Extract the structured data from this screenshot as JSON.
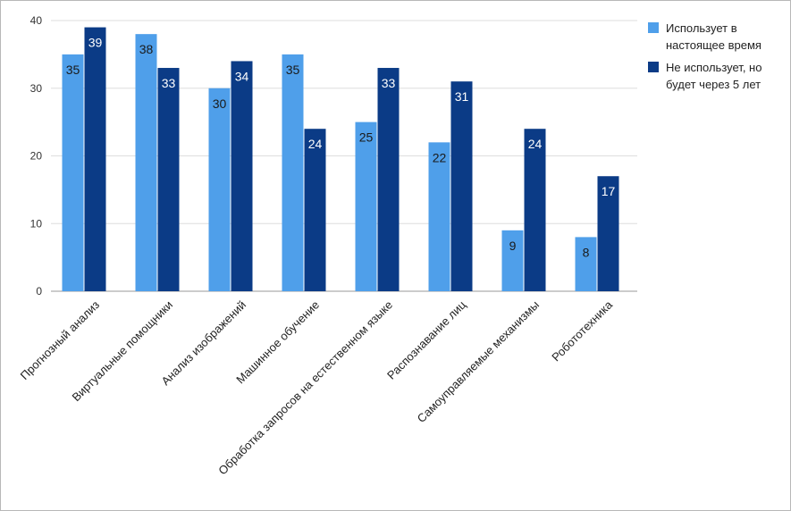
{
  "chart_data": {
    "type": "bar",
    "title": "",
    "xlabel": "",
    "ylabel": "",
    "ylim": [
      0,
      40
    ],
    "yticks": [
      0,
      10,
      20,
      30,
      40
    ],
    "grid": true,
    "legend_position": "top-right",
    "categories": [
      "Прогнозный анализ",
      "Виртуальные помощники",
      "Анализ изображений",
      "Машинное обучение",
      "Обработка запросов на естественном языке",
      "Распознавание лиц",
      "Самоуправляемые механизмы",
      "Робототехника"
    ],
    "series": [
      {
        "name": "Использует в настоящее время",
        "legend_lines": [
          "Использует в",
          "настоящее время"
        ],
        "color": "#4f9fea",
        "values": [
          35,
          38,
          30,
          35,
          25,
          22,
          9,
          8
        ]
      },
      {
        "name": "Не использует, но будет через 5 лет",
        "legend_lines": [
          "Не использует, но",
          "будет через 5 лет"
        ],
        "color": "#0b3b86",
        "values": [
          39,
          33,
          34,
          24,
          33,
          31,
          24,
          17
        ]
      }
    ]
  }
}
